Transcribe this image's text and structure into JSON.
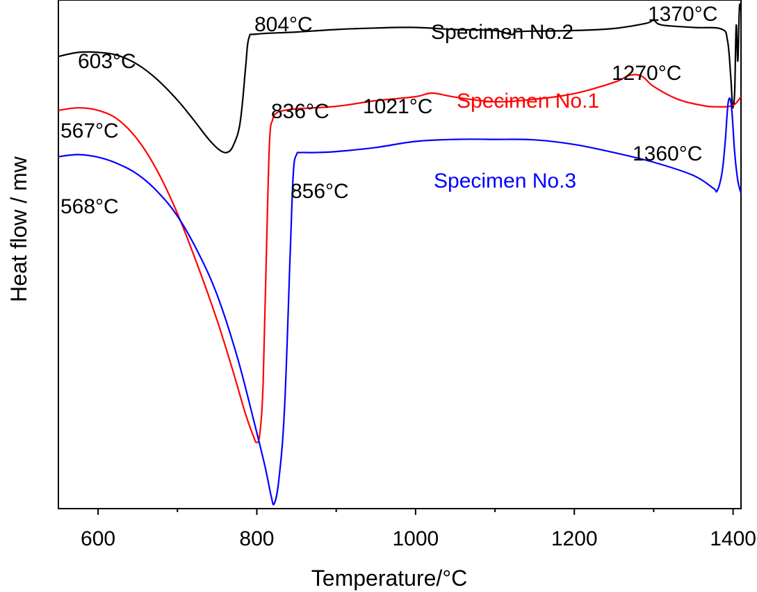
{
  "chart_data": {
    "type": "line",
    "title": "",
    "xlabel": "Temperature/°C",
    "ylabel": "Heat flow / mw",
    "xlim": [
      550,
      1410
    ],
    "ylim": [
      0,
      100
    ],
    "x_ticks": [
      600,
      800,
      1000,
      1200,
      1400
    ],
    "x_minor_ticks": [
      700,
      900,
      1100,
      1300
    ],
    "y_tick_labels_shown": false,
    "grid": false,
    "colors": {
      "Specimen No.1": "#ff0000",
      "Specimen No.2": "#000000",
      "Specimen No.3": "#0000ff"
    },
    "series": [
      {
        "name": "Specimen No.2",
        "color": "#000000",
        "x": [
          550,
          575,
          600,
          625,
          650,
          675,
          700,
          720,
          740,
          755,
          765,
          772,
          778,
          782,
          786,
          790,
          800,
          850,
          900,
          950,
          1000,
          1050,
          1100,
          1120,
          1125,
          1130,
          1150,
          1200,
          1250,
          1290,
          1300,
          1310,
          1350,
          1385,
          1393,
          1397,
          1399,
          1400,
          1402,
          1404,
          1406,
          1408,
          1410
        ],
        "values": [
          88.9,
          89.7,
          89.7,
          89.1,
          87.3,
          84.3,
          80.3,
          76.5,
          72.5,
          70.3,
          70.2,
          72.0,
          75.0,
          80.0,
          87.0,
          92.5,
          93.3,
          93.7,
          94.2,
          94.5,
          94.6,
          94.2,
          94.0,
          93.2,
          93.7,
          93.8,
          93.9,
          94.0,
          94.4,
          95.4,
          96.0,
          95.1,
          94.6,
          94.3,
          92.0,
          85.0,
          79.8,
          79.0,
          82.0,
          95.0,
          88.0,
          98.5,
          98.0
        ]
      },
      {
        "name": "Specimen No.1",
        "color": "#ff0000",
        "x": [
          550,
          575,
          600,
          625,
          650,
          675,
          700,
          725,
          750,
          770,
          785,
          795,
          800,
          804,
          808,
          812,
          816,
          820,
          825,
          835,
          850,
          900,
          950,
          1000,
          1021,
          1050,
          1100,
          1150,
          1200,
          1250,
          1270,
          1285,
          1300,
          1330,
          1360,
          1380,
          1400,
          1410
        ],
        "values": [
          78.3,
          78.8,
          78.3,
          76.5,
          72.5,
          66.3,
          58.0,
          48.0,
          37.0,
          27.0,
          19.0,
          14.5,
          13.0,
          15.0,
          25.0,
          50.0,
          72.0,
          76.5,
          77.8,
          78.3,
          78.6,
          79.1,
          80.2,
          81.0,
          81.7,
          80.9,
          80.0,
          80.5,
          81.6,
          83.8,
          85.2,
          85.0,
          83.0,
          80.5,
          79.3,
          79.0,
          79.3,
          81.0
        ]
      },
      {
        "name": "Specimen No.3",
        "color": "#0000ff",
        "x": [
          550,
          575,
          600,
          625,
          650,
          675,
          700,
          725,
          750,
          775,
          795,
          810,
          818,
          822,
          828,
          835,
          842,
          846,
          850,
          855,
          870,
          900,
          950,
          1000,
          1050,
          1100,
          1150,
          1200,
          1250,
          1300,
          1350,
          1375,
          1380,
          1386,
          1390,
          1394,
          1398,
          1402,
          1406,
          1410
        ],
        "values": [
          69.2,
          69.6,
          69.1,
          67.8,
          65.7,
          62.3,
          57.5,
          50.7,
          42.0,
          30.0,
          18.0,
          8.5,
          2.5,
          1.0,
          6.0,
          20.0,
          50.0,
          66.0,
          69.6,
          70.0,
          70.0,
          70.2,
          71.0,
          72.2,
          72.6,
          72.6,
          72.5,
          71.6,
          70.0,
          68.1,
          65.5,
          63.0,
          62.5,
          66.0,
          72.0,
          80.0,
          79.0,
          70.0,
          64.5,
          62.0
        ]
      }
    ],
    "annotations": [
      {
        "text": "603°C",
        "color": "#000000"
      },
      {
        "text": "804°C",
        "color": "#000000"
      },
      {
        "text": "Specimen No.2",
        "color": "#000000"
      },
      {
        "text": "1370°C",
        "color": "#000000"
      },
      {
        "text": "1270°C",
        "color": "#000000"
      },
      {
        "text": "Specimen No.1",
        "color": "#ff0000"
      },
      {
        "text": "1021°C",
        "color": "#000000"
      },
      {
        "text": "836°C",
        "color": "#000000"
      },
      {
        "text": "567°C",
        "color": "#000000"
      },
      {
        "text": "1360°C",
        "color": "#000000"
      },
      {
        "text": "Specimen No.3",
        "color": "#0000ff"
      },
      {
        "text": "856°C",
        "color": "#000000"
      },
      {
        "text": "568°C",
        "color": "#000000"
      }
    ]
  }
}
